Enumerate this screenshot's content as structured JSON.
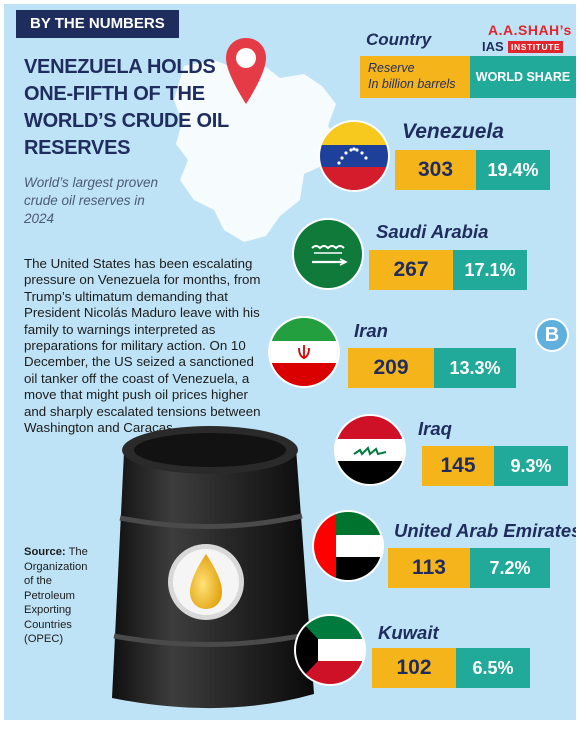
{
  "badge": "BY THE NUMBERS",
  "headline": "VENEZUELA HOLDS ONE-FIFTH OF THE WORLD’S CRUDE OIL RESERVES",
  "subhead": "World’s largest proven crude oil reserves in 2024",
  "body": "The United States has been escalating pressure on Venezuela for months, from Trump’s ultimatum demanding that President Nicolás Maduro leave with his family to warnings interpreted as preparations for military action. On 10 December, the US seized a sanctioned oil tanker off the coast of Venezuela, a move that might push oil prices higher and sharply escalated tensions between Washington and Caracas.",
  "source": {
    "label": "Source:",
    "text": "The Organization of the Petroleum Exporting Countries (OPEC)"
  },
  "legend": {
    "country": "Country",
    "reserve_line1": "Reserve",
    "reserve_line2": "In billion barrels",
    "share": "WORLD SHARE"
  },
  "logo": {
    "line1": "A.A.SHAH’s",
    "line2": "IAS",
    "line3": "INSTITUTE",
    "circle": "B"
  },
  "countries": [
    {
      "name": "Venezuela",
      "reserve": "303",
      "share": "19.4%"
    },
    {
      "name": "Saudi Arabia",
      "reserve": "267",
      "share": "17.1%"
    },
    {
      "name": "Iran",
      "reserve": "209",
      "share": "13.3%"
    },
    {
      "name": "Iraq",
      "reserve": "145",
      "share": "9.3%"
    },
    {
      "name": "United Arab Emirates",
      "reserve": "113",
      "share": "7.2%"
    },
    {
      "name": "Kuwait",
      "reserve": "102",
      "share": "6.5%"
    }
  ],
  "colors": {
    "navy": "#1f2d5e",
    "background": "#bfe3f6",
    "reserve": "#f6b41b",
    "share": "#21a99a",
    "accent_red": "#e0262c"
  }
}
